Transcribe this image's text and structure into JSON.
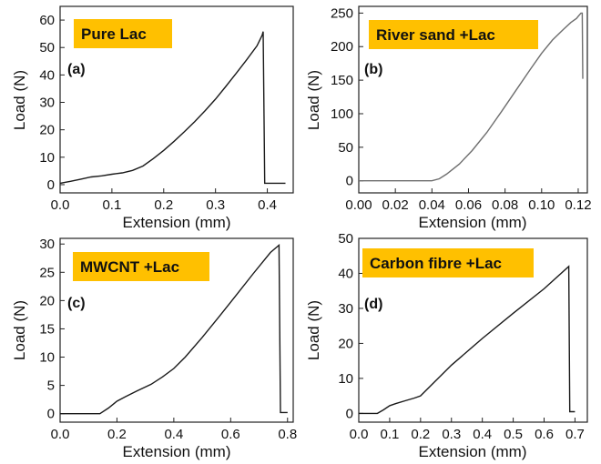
{
  "chart_data": [
    {
      "type": "line",
      "title": "Pure Lac",
      "panel": "(a)",
      "xlabel": "Extension (mm)",
      "ylabel": "Load (N)",
      "xlim": [
        0,
        0.45
      ],
      "ylim": [
        -3,
        65
      ],
      "xticks": [
        0.0,
        0.1,
        0.2,
        0.3,
        0.4
      ],
      "xtick_labels": [
        "0.0",
        "0.1",
        "0.2",
        "0.3",
        "0.4"
      ],
      "yticks": [
        0,
        10,
        20,
        30,
        40,
        50,
        60
      ],
      "ytick_labels": [
        "0",
        "10",
        "20",
        "30",
        "40",
        "50",
        "60"
      ],
      "line_color": "#1a1a1a",
      "series": [
        {
          "x": [
            0.0,
            0.02,
            0.04,
            0.06,
            0.08,
            0.1,
            0.12,
            0.14,
            0.16,
            0.18,
            0.2,
            0.22,
            0.24,
            0.26,
            0.28,
            0.3,
            0.32,
            0.34,
            0.36,
            0.38,
            0.39,
            0.392,
            0.395,
            0.42,
            0.435
          ],
          "y": [
            0.5,
            1.2,
            2.0,
            2.8,
            3.2,
            3.8,
            4.3,
            5.2,
            6.8,
            9.5,
            12.5,
            15.8,
            19.3,
            23.0,
            27.0,
            31.2,
            35.8,
            40.6,
            45.5,
            50.6,
            54.5,
            55.8,
            0.5,
            0.5,
            0.5
          ]
        }
      ]
    },
    {
      "type": "line",
      "title": "River sand +Lac",
      "panel": "(b)",
      "xlabel": "Extension (mm)",
      "ylabel": "Load (N)",
      "xlim": [
        0,
        0.125
      ],
      "ylim": [
        -18,
        260
      ],
      "xticks": [
        0.0,
        0.02,
        0.04,
        0.06,
        0.08,
        0.1,
        0.12
      ],
      "xtick_labels": [
        "0.00",
        "0.02",
        "0.04",
        "0.06",
        "0.08",
        "0.10",
        "0.12"
      ],
      "yticks": [
        0,
        50,
        100,
        150,
        200,
        250
      ],
      "ytick_labels": [
        "0",
        "50",
        "100",
        "150",
        "200",
        "250"
      ],
      "line_color": "#6e6e6e",
      "series": [
        {
          "x": [
            0.0,
            0.02,
            0.04,
            0.044,
            0.048,
            0.055,
            0.062,
            0.07,
            0.078,
            0.086,
            0.094,
            0.1,
            0.106,
            0.112,
            0.116,
            0.119,
            0.1215,
            0.1222,
            0.1225
          ],
          "y": [
            0,
            0,
            0,
            3,
            10,
            25,
            45,
            72,
            103,
            135,
            167,
            190,
            210,
            226,
            236,
            242,
            250,
            250,
            152
          ]
        }
      ]
    },
    {
      "type": "line",
      "title": "MWCNT +Lac",
      "panel": "(c)",
      "xlabel": "Extension (mm)",
      "ylabel": "Load (N)",
      "xlim": [
        0,
        0.82
      ],
      "ylim": [
        -1.5,
        31
      ],
      "xticks": [
        0.0,
        0.2,
        0.4,
        0.6,
        0.8
      ],
      "xtick_labels": [
        "0.0",
        "0.2",
        "0.4",
        "0.6",
        "0.8"
      ],
      "yticks": [
        0,
        5,
        10,
        15,
        20,
        25,
        30
      ],
      "ytick_labels": [
        "0",
        "5",
        "10",
        "15",
        "20",
        "25",
        "30"
      ],
      "line_color": "#1a1a1a",
      "series": [
        {
          "x": [
            0.0,
            0.14,
            0.17,
            0.2,
            0.23,
            0.27,
            0.32,
            0.36,
            0.4,
            0.44,
            0.5,
            0.56,
            0.62,
            0.68,
            0.74,
            0.77,
            0.775,
            0.78,
            0.8
          ],
          "y": [
            0,
            0,
            1.0,
            2.2,
            3.0,
            4.0,
            5.2,
            6.5,
            8.0,
            10.0,
            13.5,
            17.2,
            21.0,
            24.8,
            28.5,
            29.8,
            0.2,
            0.2,
            0.2
          ]
        }
      ]
    },
    {
      "type": "line",
      "title": "Carbon fibre +Lac",
      "panel": "(d)",
      "xlabel": "Extension (mm)",
      "ylabel": "Load (N)",
      "xlim": [
        0,
        0.74
      ],
      "ylim": [
        -2.5,
        50
      ],
      "xticks": [
        0.0,
        0.1,
        0.2,
        0.3,
        0.4,
        0.5,
        0.6,
        0.7
      ],
      "xtick_labels": [
        "0.0",
        "0.1",
        "0.2",
        "0.3",
        "0.4",
        "0.5",
        "0.6",
        "0.7"
      ],
      "yticks": [
        0,
        10,
        20,
        30,
        40,
        50
      ],
      "ytick_labels": [
        "0",
        "10",
        "20",
        "30",
        "40",
        "50"
      ],
      "line_color": "#1a1a1a",
      "series": [
        {
          "x": [
            0.0,
            0.06,
            0.08,
            0.1,
            0.12,
            0.15,
            0.18,
            0.2,
            0.3,
            0.4,
            0.5,
            0.6,
            0.68,
            0.683,
            0.69,
            0.7
          ],
          "y": [
            0,
            0,
            1.0,
            2.2,
            2.8,
            3.6,
            4.4,
            5.0,
            13.8,
            21.4,
            28.6,
            35.6,
            42.0,
            0.5,
            0.5,
            0.5
          ]
        }
      ]
    }
  ]
}
